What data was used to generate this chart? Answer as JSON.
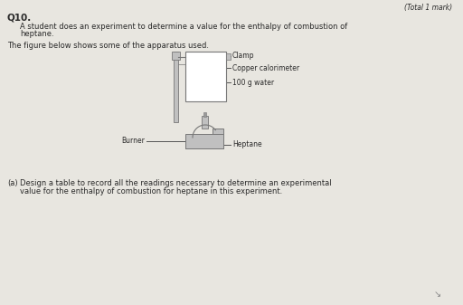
{
  "bg_color": "#e8e6e0",
  "page_color": "#f0efeb",
  "title_mark": "(Total 1 mark)",
  "q_number": "Q10.",
  "q_text_line1": "A student does an experiment to determine a value for the enthalpy of combustion of",
  "q_text_line2": "heptane.",
  "fig_text": "The figure below shows some of the apparatus used.",
  "label_clamp": "Clamp",
  "label_copper": "Copper calorimeter",
  "label_water": "100 g water",
  "label_burner": "Burner",
  "label_heptane": "Heptane",
  "part_a": "(a)",
  "part_a_text_line1": "Design a table to record all the readings necessary to determine an experimental",
  "part_a_text_line2": "value for the enthalpy of combustion for heptane in this experiment.",
  "text_color": "#2a2a2a",
  "apparatus_color": "#c0c0c0",
  "apparatus_edge": "#777777",
  "line_color": "#555555",
  "font_size_q": 7.5,
  "font_size_body": 6.0,
  "font_size_label": 5.5,
  "font_size_mark": 5.5
}
